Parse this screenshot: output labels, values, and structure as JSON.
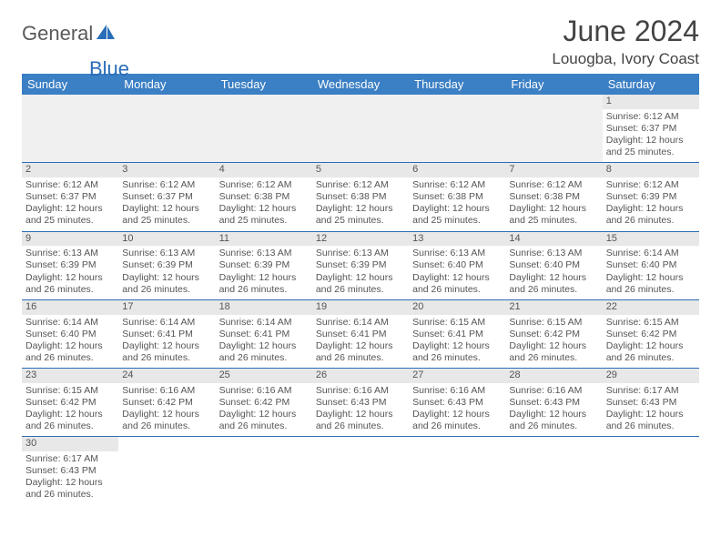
{
  "logo": {
    "part1": "General",
    "part2": "Blue"
  },
  "title": "June 2024",
  "location": "Louogba, Ivory Coast",
  "colors": {
    "header_bg": "#3b7fc4",
    "header_text": "#ffffff",
    "border": "#2a6db8",
    "daynum_bg": "#e8e8e8",
    "shade_bg": "#f0f0f0",
    "text": "#555555",
    "logo_gray": "#5a5a5a",
    "logo_blue": "#2a6db8"
  },
  "weekdays": [
    "Sunday",
    "Monday",
    "Tuesday",
    "Wednesday",
    "Thursday",
    "Friday",
    "Saturday"
  ],
  "weeks": [
    [
      null,
      null,
      null,
      null,
      null,
      null,
      {
        "n": "1",
        "sunrise": "6:12 AM",
        "sunset": "6:37 PM",
        "daylight": "12 hours and 25 minutes."
      }
    ],
    [
      {
        "n": "2",
        "sunrise": "6:12 AM",
        "sunset": "6:37 PM",
        "daylight": "12 hours and 25 minutes."
      },
      {
        "n": "3",
        "sunrise": "6:12 AM",
        "sunset": "6:37 PM",
        "daylight": "12 hours and 25 minutes."
      },
      {
        "n": "4",
        "sunrise": "6:12 AM",
        "sunset": "6:38 PM",
        "daylight": "12 hours and 25 minutes."
      },
      {
        "n": "5",
        "sunrise": "6:12 AM",
        "sunset": "6:38 PM",
        "daylight": "12 hours and 25 minutes."
      },
      {
        "n": "6",
        "sunrise": "6:12 AM",
        "sunset": "6:38 PM",
        "daylight": "12 hours and 25 minutes."
      },
      {
        "n": "7",
        "sunrise": "6:12 AM",
        "sunset": "6:38 PM",
        "daylight": "12 hours and 25 minutes."
      },
      {
        "n": "8",
        "sunrise": "6:12 AM",
        "sunset": "6:39 PM",
        "daylight": "12 hours and 26 minutes."
      }
    ],
    [
      {
        "n": "9",
        "sunrise": "6:13 AM",
        "sunset": "6:39 PM",
        "daylight": "12 hours and 26 minutes."
      },
      {
        "n": "10",
        "sunrise": "6:13 AM",
        "sunset": "6:39 PM",
        "daylight": "12 hours and 26 minutes."
      },
      {
        "n": "11",
        "sunrise": "6:13 AM",
        "sunset": "6:39 PM",
        "daylight": "12 hours and 26 minutes."
      },
      {
        "n": "12",
        "sunrise": "6:13 AM",
        "sunset": "6:39 PM",
        "daylight": "12 hours and 26 minutes."
      },
      {
        "n": "13",
        "sunrise": "6:13 AM",
        "sunset": "6:40 PM",
        "daylight": "12 hours and 26 minutes."
      },
      {
        "n": "14",
        "sunrise": "6:13 AM",
        "sunset": "6:40 PM",
        "daylight": "12 hours and 26 minutes."
      },
      {
        "n": "15",
        "sunrise": "6:14 AM",
        "sunset": "6:40 PM",
        "daylight": "12 hours and 26 minutes."
      }
    ],
    [
      {
        "n": "16",
        "sunrise": "6:14 AM",
        "sunset": "6:40 PM",
        "daylight": "12 hours and 26 minutes."
      },
      {
        "n": "17",
        "sunrise": "6:14 AM",
        "sunset": "6:41 PM",
        "daylight": "12 hours and 26 minutes."
      },
      {
        "n": "18",
        "sunrise": "6:14 AM",
        "sunset": "6:41 PM",
        "daylight": "12 hours and 26 minutes."
      },
      {
        "n": "19",
        "sunrise": "6:14 AM",
        "sunset": "6:41 PM",
        "daylight": "12 hours and 26 minutes."
      },
      {
        "n": "20",
        "sunrise": "6:15 AM",
        "sunset": "6:41 PM",
        "daylight": "12 hours and 26 minutes."
      },
      {
        "n": "21",
        "sunrise": "6:15 AM",
        "sunset": "6:42 PM",
        "daylight": "12 hours and 26 minutes."
      },
      {
        "n": "22",
        "sunrise": "6:15 AM",
        "sunset": "6:42 PM",
        "daylight": "12 hours and 26 minutes."
      }
    ],
    [
      {
        "n": "23",
        "sunrise": "6:15 AM",
        "sunset": "6:42 PM",
        "daylight": "12 hours and 26 minutes."
      },
      {
        "n": "24",
        "sunrise": "6:16 AM",
        "sunset": "6:42 PM",
        "daylight": "12 hours and 26 minutes."
      },
      {
        "n": "25",
        "sunrise": "6:16 AM",
        "sunset": "6:42 PM",
        "daylight": "12 hours and 26 minutes."
      },
      {
        "n": "26",
        "sunrise": "6:16 AM",
        "sunset": "6:43 PM",
        "daylight": "12 hours and 26 minutes."
      },
      {
        "n": "27",
        "sunrise": "6:16 AM",
        "sunset": "6:43 PM",
        "daylight": "12 hours and 26 minutes."
      },
      {
        "n": "28",
        "sunrise": "6:16 AM",
        "sunset": "6:43 PM",
        "daylight": "12 hours and 26 minutes."
      },
      {
        "n": "29",
        "sunrise": "6:17 AM",
        "sunset": "6:43 PM",
        "daylight": "12 hours and 26 minutes."
      }
    ],
    [
      {
        "n": "30",
        "sunrise": "6:17 AM",
        "sunset": "6:43 PM",
        "daylight": "12 hours and 26 minutes."
      },
      null,
      null,
      null,
      null,
      null,
      null
    ]
  ],
  "labels": {
    "sunrise": "Sunrise:",
    "sunset": "Sunset:",
    "daylight": "Daylight:"
  }
}
